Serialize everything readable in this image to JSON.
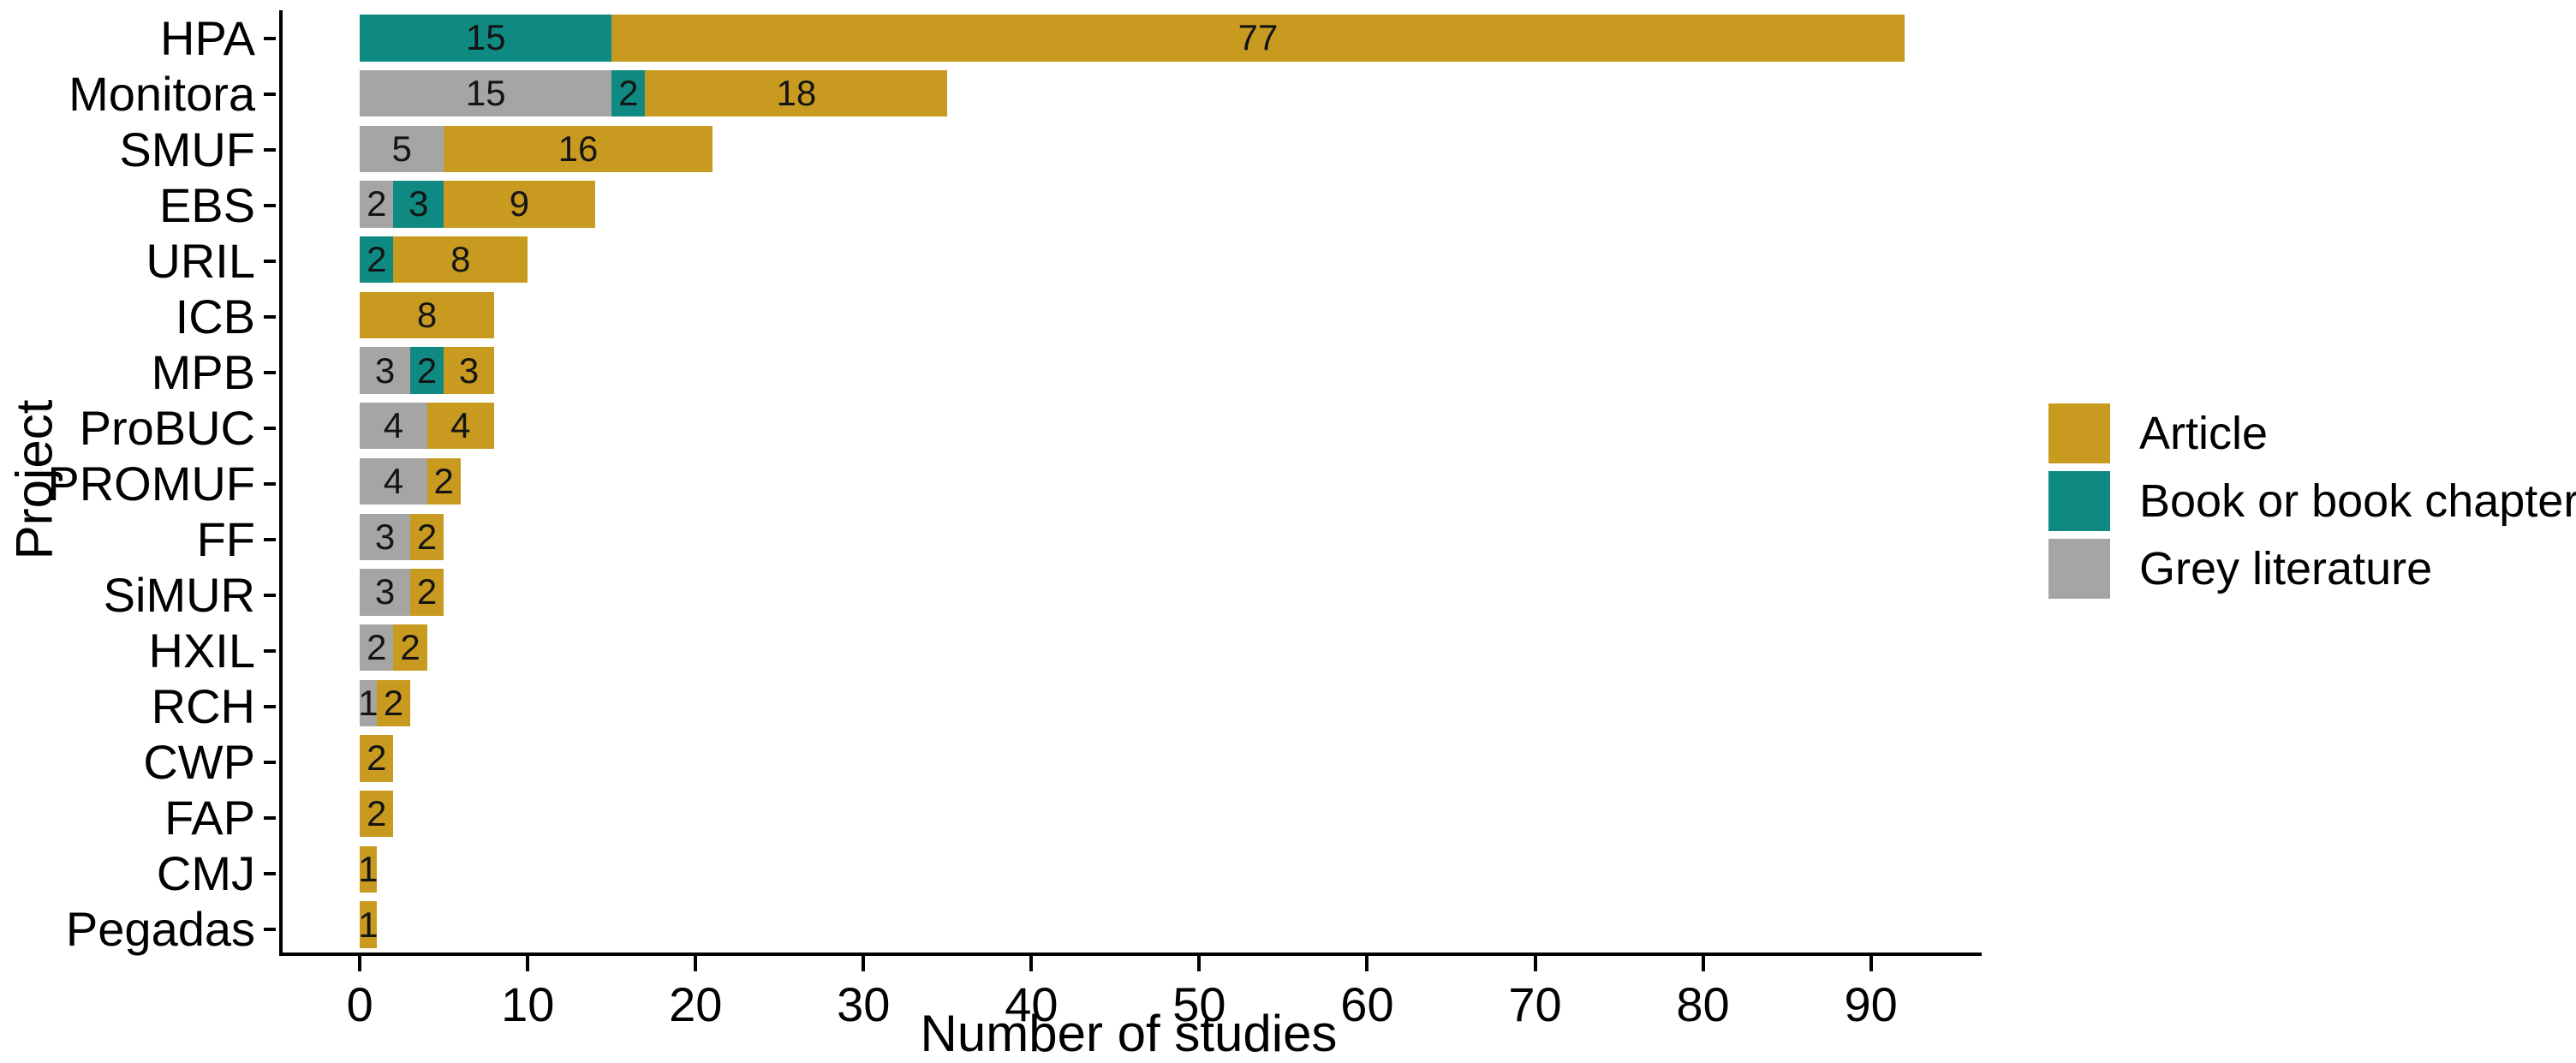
{
  "chart_data": {
    "type": "bar",
    "orientation": "horizontal",
    "stacked": true,
    "title": "",
    "xlabel": "Number of studies",
    "ylabel": "Project",
    "xlim": [
      -4.6,
      96.6
    ],
    "x_ticks": [
      0,
      10,
      20,
      30,
      40,
      50,
      60,
      70,
      80,
      90
    ],
    "grid": false,
    "legend_position": "right-middle",
    "categories": [
      "HPA",
      "Monitora",
      "SMUF",
      "EBS",
      "URIL",
      "ICB",
      "MPB",
      "ProBUC",
      "PROMUF",
      "FF",
      "SiMUR",
      "HXIL",
      "RCH",
      "CWP",
      "FAP",
      "CMJ",
      "Pegadas"
    ],
    "stack_order_left_to_right": [
      "Grey literature",
      "Book or book chapter",
      "Article"
    ],
    "series": [
      {
        "name": "Grey literature",
        "color": "#A5A5A5",
        "values": [
          0,
          15,
          5,
          2,
          0,
          0,
          3,
          4,
          4,
          3,
          3,
          2,
          1,
          0,
          0,
          0,
          0
        ]
      },
      {
        "name": "Book or book chapter",
        "color": "#0F8A82",
        "values": [
          15,
          2,
          0,
          3,
          2,
          0,
          2,
          0,
          0,
          0,
          0,
          0,
          0,
          0,
          0,
          0,
          0
        ]
      },
      {
        "name": "Article",
        "color": "#C89B20",
        "values": [
          77,
          18,
          16,
          9,
          8,
          8,
          3,
          4,
          2,
          2,
          2,
          2,
          2,
          2,
          2,
          1,
          1
        ]
      }
    ],
    "totals": [
      92,
      35,
      21,
      14,
      10,
      8,
      8,
      8,
      6,
      5,
      5,
      4,
      3,
      2,
      2,
      1,
      1
    ],
    "segment_labels_shown_for_nonzero": true,
    "label_color": "#141414"
  },
  "legend": {
    "entries": [
      {
        "label": "Article",
        "color": "#C89B20"
      },
      {
        "label": "Book or book chapter",
        "color": "#0F8A82"
      },
      {
        "label": "Grey literature",
        "color": "#A5A5A5"
      }
    ]
  },
  "colors": {
    "background": "#ffffff",
    "axis": "#000000"
  }
}
